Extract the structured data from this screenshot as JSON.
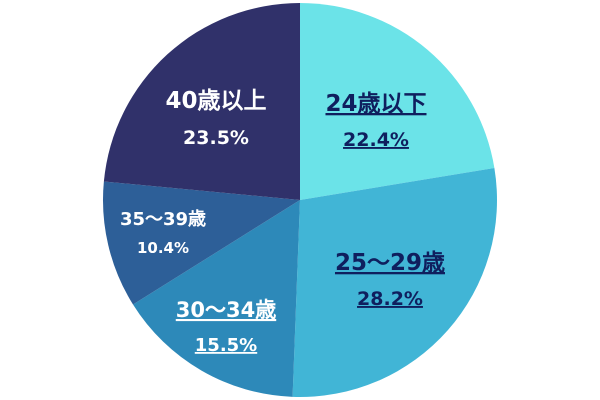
{
  "chart_data": {
    "type": "pie",
    "start": "top",
    "direction": "clockwise",
    "slices": [
      {
        "label": "24歳以下",
        "value": 22.4,
        "value_label": "22.4%",
        "color": "#6be3e8",
        "text_color": "#0f1f5e",
        "underline": true
      },
      {
        "label": "25〜29歳",
        "value": 28.2,
        "value_label": "28.2%",
        "color": "#41b5d6",
        "text_color": "#0f1f5e",
        "underline": true
      },
      {
        "label": "30〜34歳",
        "value": 15.5,
        "value_label": "15.5%",
        "color": "#2d89b9",
        "text_color": "#ffffff",
        "underline": true
      },
      {
        "label": "35〜39歳",
        "value": 10.4,
        "value_label": "10.4%",
        "color": "#2d5f98",
        "text_color": "#ffffff",
        "underline": false
      },
      {
        "label": "40歳以上",
        "value": 23.5,
        "value_label": "23.5%",
        "color": "#30316a",
        "text_color": "#ffffff",
        "underline": false
      }
    ]
  }
}
